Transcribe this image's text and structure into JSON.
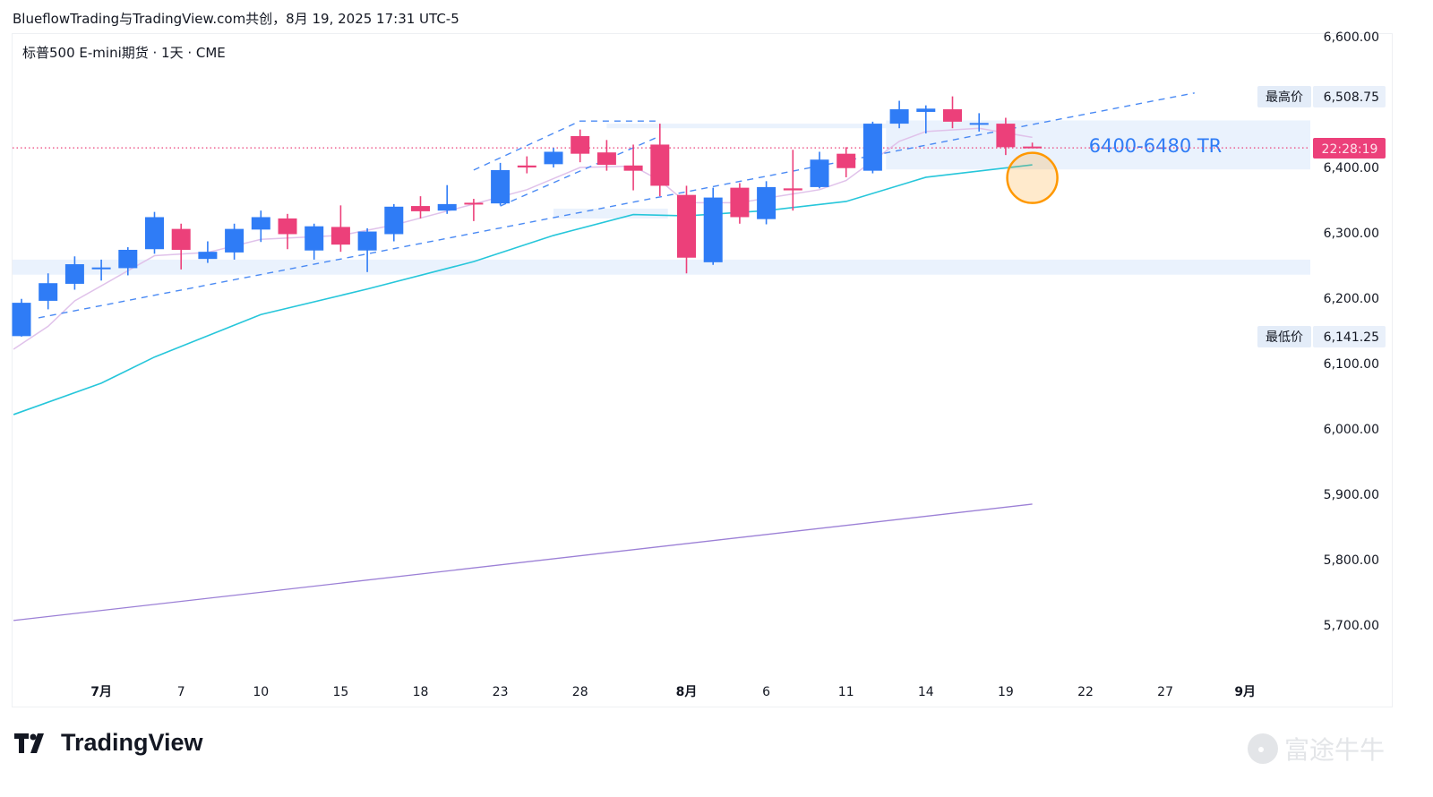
{
  "header": {
    "title": "BlueflowTrading与TradingView.com共创，8月 19, 2025 17:31 UTC-5"
  },
  "legend": {
    "symbol": "标普500 E-mini期货 · 1天 · CME"
  },
  "logo": {
    "text": "TradingView"
  },
  "watermark": {
    "text": "富途牛牛"
  },
  "colors": {
    "up": "#2f7cf6",
    "down": "#ec407a",
    "ma_fast": "#e0c2ea",
    "ma_mid": "#26c6da",
    "ma_slow": "#9c80d6",
    "trend": "#4a8af4",
    "zone": "#e8f1fd",
    "highlight": "#ff9800"
  },
  "chart_data": {
    "type": "candlestick",
    "title": "标普500 E-mini期货 · 1天 · CME",
    "ylim": [
      5640,
      6610
    ],
    "y_ticks": [
      {
        "value": 6600,
        "label": "6,600.00"
      },
      {
        "value": 6400,
        "label": "6,400.00"
      },
      {
        "value": 6300,
        "label": "6,300.00"
      },
      {
        "value": 6200,
        "label": "6,200.00"
      },
      {
        "value": 6100,
        "label": "6,100.00"
      },
      {
        "value": 6000,
        "label": "6,000.00"
      },
      {
        "value": 5900,
        "label": "5,900.00"
      },
      {
        "value": 5800,
        "label": "5,800.00"
      },
      {
        "value": 5700,
        "label": "5,700.00"
      }
    ],
    "x_ticks": [
      {
        "index": 3,
        "label": "7月",
        "bold": true
      },
      {
        "index": 6,
        "label": "7"
      },
      {
        "index": 9,
        "label": "10"
      },
      {
        "index": 12,
        "label": "15"
      },
      {
        "index": 15,
        "label": "18"
      },
      {
        "index": 18,
        "label": "23"
      },
      {
        "index": 21,
        "label": "28"
      },
      {
        "index": 25,
        "label": "8月",
        "bold": true
      },
      {
        "index": 28,
        "label": "6"
      },
      {
        "index": 31,
        "label": "11"
      },
      {
        "index": 34,
        "label": "14"
      },
      {
        "index": 37,
        "label": "19"
      },
      {
        "index": 40,
        "label": "22"
      },
      {
        "index": 43,
        "label": "27"
      },
      {
        "index": 46,
        "label": "9月",
        "bold": true
      }
    ],
    "dates": [
      "06-26",
      "06-27",
      "06-30",
      "07-01",
      "07-02",
      "07-03",
      "07-07",
      "07-08",
      "07-09",
      "07-10",
      "07-11",
      "07-14",
      "07-15",
      "07-16",
      "07-17",
      "07-18",
      "07-21",
      "07-22",
      "07-23",
      "07-24",
      "07-25",
      "07-28",
      "07-29",
      "07-30",
      "07-31",
      "08-01",
      "08-04",
      "08-05",
      "08-06",
      "08-07",
      "08-08",
      "08-11",
      "08-12",
      "08-13",
      "08-14",
      "08-15",
      "08-18",
      "08-19",
      "08-20"
    ],
    "ohlc": [
      [
        6142,
        6199,
        6141.25,
        6193
      ],
      [
        6196,
        6238,
        6183,
        6223
      ],
      [
        6222,
        6264,
        6213,
        6252
      ],
      [
        6246,
        6259,
        6227,
        6247
      ],
      [
        6246,
        6278,
        6235,
        6274
      ],
      [
        6275,
        6332,
        6268,
        6324
      ],
      [
        6306,
        6314,
        6244,
        6274
      ],
      [
        6260,
        6287,
        6254,
        6271
      ],
      [
        6270,
        6314,
        6259,
        6306
      ],
      [
        6305,
        6334,
        6286,
        6324
      ],
      [
        6322,
        6329,
        6275,
        6298
      ],
      [
        6273,
        6314,
        6259,
        6310
      ],
      [
        6309,
        6342,
        6271,
        6282
      ],
      [
        6273,
        6307,
        6240,
        6302
      ],
      [
        6298,
        6344,
        6287,
        6340
      ],
      [
        6341,
        6356,
        6322,
        6333
      ],
      [
        6334,
        6373,
        6329,
        6344
      ],
      [
        6346,
        6352,
        6318,
        6345
      ],
      [
        6345,
        6407,
        6342,
        6396
      ],
      [
        6403,
        6417,
        6391,
        6400
      ],
      [
        6405,
        6430,
        6400,
        6424
      ],
      [
        6448,
        6458,
        6408,
        6421
      ],
      [
        6423,
        6442,
        6395,
        6404
      ],
      [
        6403,
        6435,
        6365,
        6395
      ],
      [
        6435,
        6467,
        6356,
        6372
      ],
      [
        6358,
        6372,
        6238,
        6262
      ],
      [
        6255,
        6369,
        6251,
        6354
      ],
      [
        6369,
        6376,
        6314,
        6324
      ],
      [
        6321,
        6379,
        6313,
        6370
      ],
      [
        6368,
        6427,
        6334,
        6365
      ],
      [
        6370,
        6424,
        6368,
        6412
      ],
      [
        6421,
        6431,
        6385,
        6399
      ],
      [
        6395,
        6470,
        6391,
        6467
      ],
      [
        6467,
        6502,
        6460,
        6489
      ],
      [
        6485,
        6495,
        6452,
        6490
      ],
      [
        6489,
        6508.75,
        6460,
        6470
      ],
      [
        6467,
        6483,
        6455,
        6468
      ],
      [
        6467,
        6476,
        6419,
        6431
      ],
      [
        6432,
        6438,
        6430,
        6431
      ]
    ],
    "ma_fast": [
      [
        -0.3,
        6122
      ],
      [
        1,
        6157
      ],
      [
        2,
        6196
      ],
      [
        5,
        6265
      ],
      [
        7,
        6270
      ],
      [
        9,
        6290
      ],
      [
        12,
        6296
      ],
      [
        14,
        6312
      ],
      [
        17,
        6344
      ],
      [
        19,
        6366
      ],
      [
        21,
        6400
      ],
      [
        23,
        6402
      ],
      [
        24,
        6380
      ],
      [
        25,
        6346
      ],
      [
        27,
        6346
      ],
      [
        28,
        6353
      ],
      [
        30,
        6366
      ],
      [
        31,
        6380
      ],
      [
        33,
        6440
      ],
      [
        34,
        6455
      ],
      [
        36,
        6460
      ],
      [
        38,
        6446
      ]
    ],
    "ma_mid": [
      [
        -0.3,
        6022
      ],
      [
        3,
        6070
      ],
      [
        5,
        6110
      ],
      [
        9,
        6175
      ],
      [
        13,
        6214
      ],
      [
        17,
        6256
      ],
      [
        20,
        6296
      ],
      [
        23,
        6328
      ],
      [
        25,
        6326
      ],
      [
        28,
        6334
      ],
      [
        31,
        6348
      ],
      [
        34,
        6385
      ],
      [
        38,
        6404
      ]
    ],
    "ma_slow": [
      [
        -0.3,
        5707
      ],
      [
        38,
        5885
      ]
    ],
    "trendlines": [
      {
        "points": [
          [
            0.64,
            6170
          ],
          [
            44.1,
            6514
          ]
        ]
      },
      {
        "points": [
          [
            17,
            6396
          ],
          [
            21,
            6471
          ],
          [
            24,
            6471
          ]
        ]
      },
      {
        "points": [
          [
            18,
            6341
          ],
          [
            24,
            6448
          ]
        ]
      }
    ],
    "zones": [
      {
        "from": -1,
        "to": 48.5,
        "low": 6236,
        "high": 6259
      },
      {
        "from": 20,
        "to": 24.3,
        "low": 6322,
        "high": 6337
      },
      {
        "from": 22,
        "to": 33,
        "low": 6460,
        "high": 6467
      },
      {
        "from": 32.5,
        "to": 48.5,
        "low": 6397,
        "high": 6472,
        "label": "6400-6480 TR"
      }
    ],
    "highlight_circle": {
      "index": 38,
      "price": 6384
    },
    "current_price": 6430,
    "countdown": "22:28:19",
    "below_countdown_label": "6,400.00",
    "high": {
      "label": "最高价",
      "value": "6,508.75",
      "price": 6508.75
    },
    "low": {
      "label": "最低价",
      "value": "6,141.25",
      "price": 6141.25
    }
  }
}
